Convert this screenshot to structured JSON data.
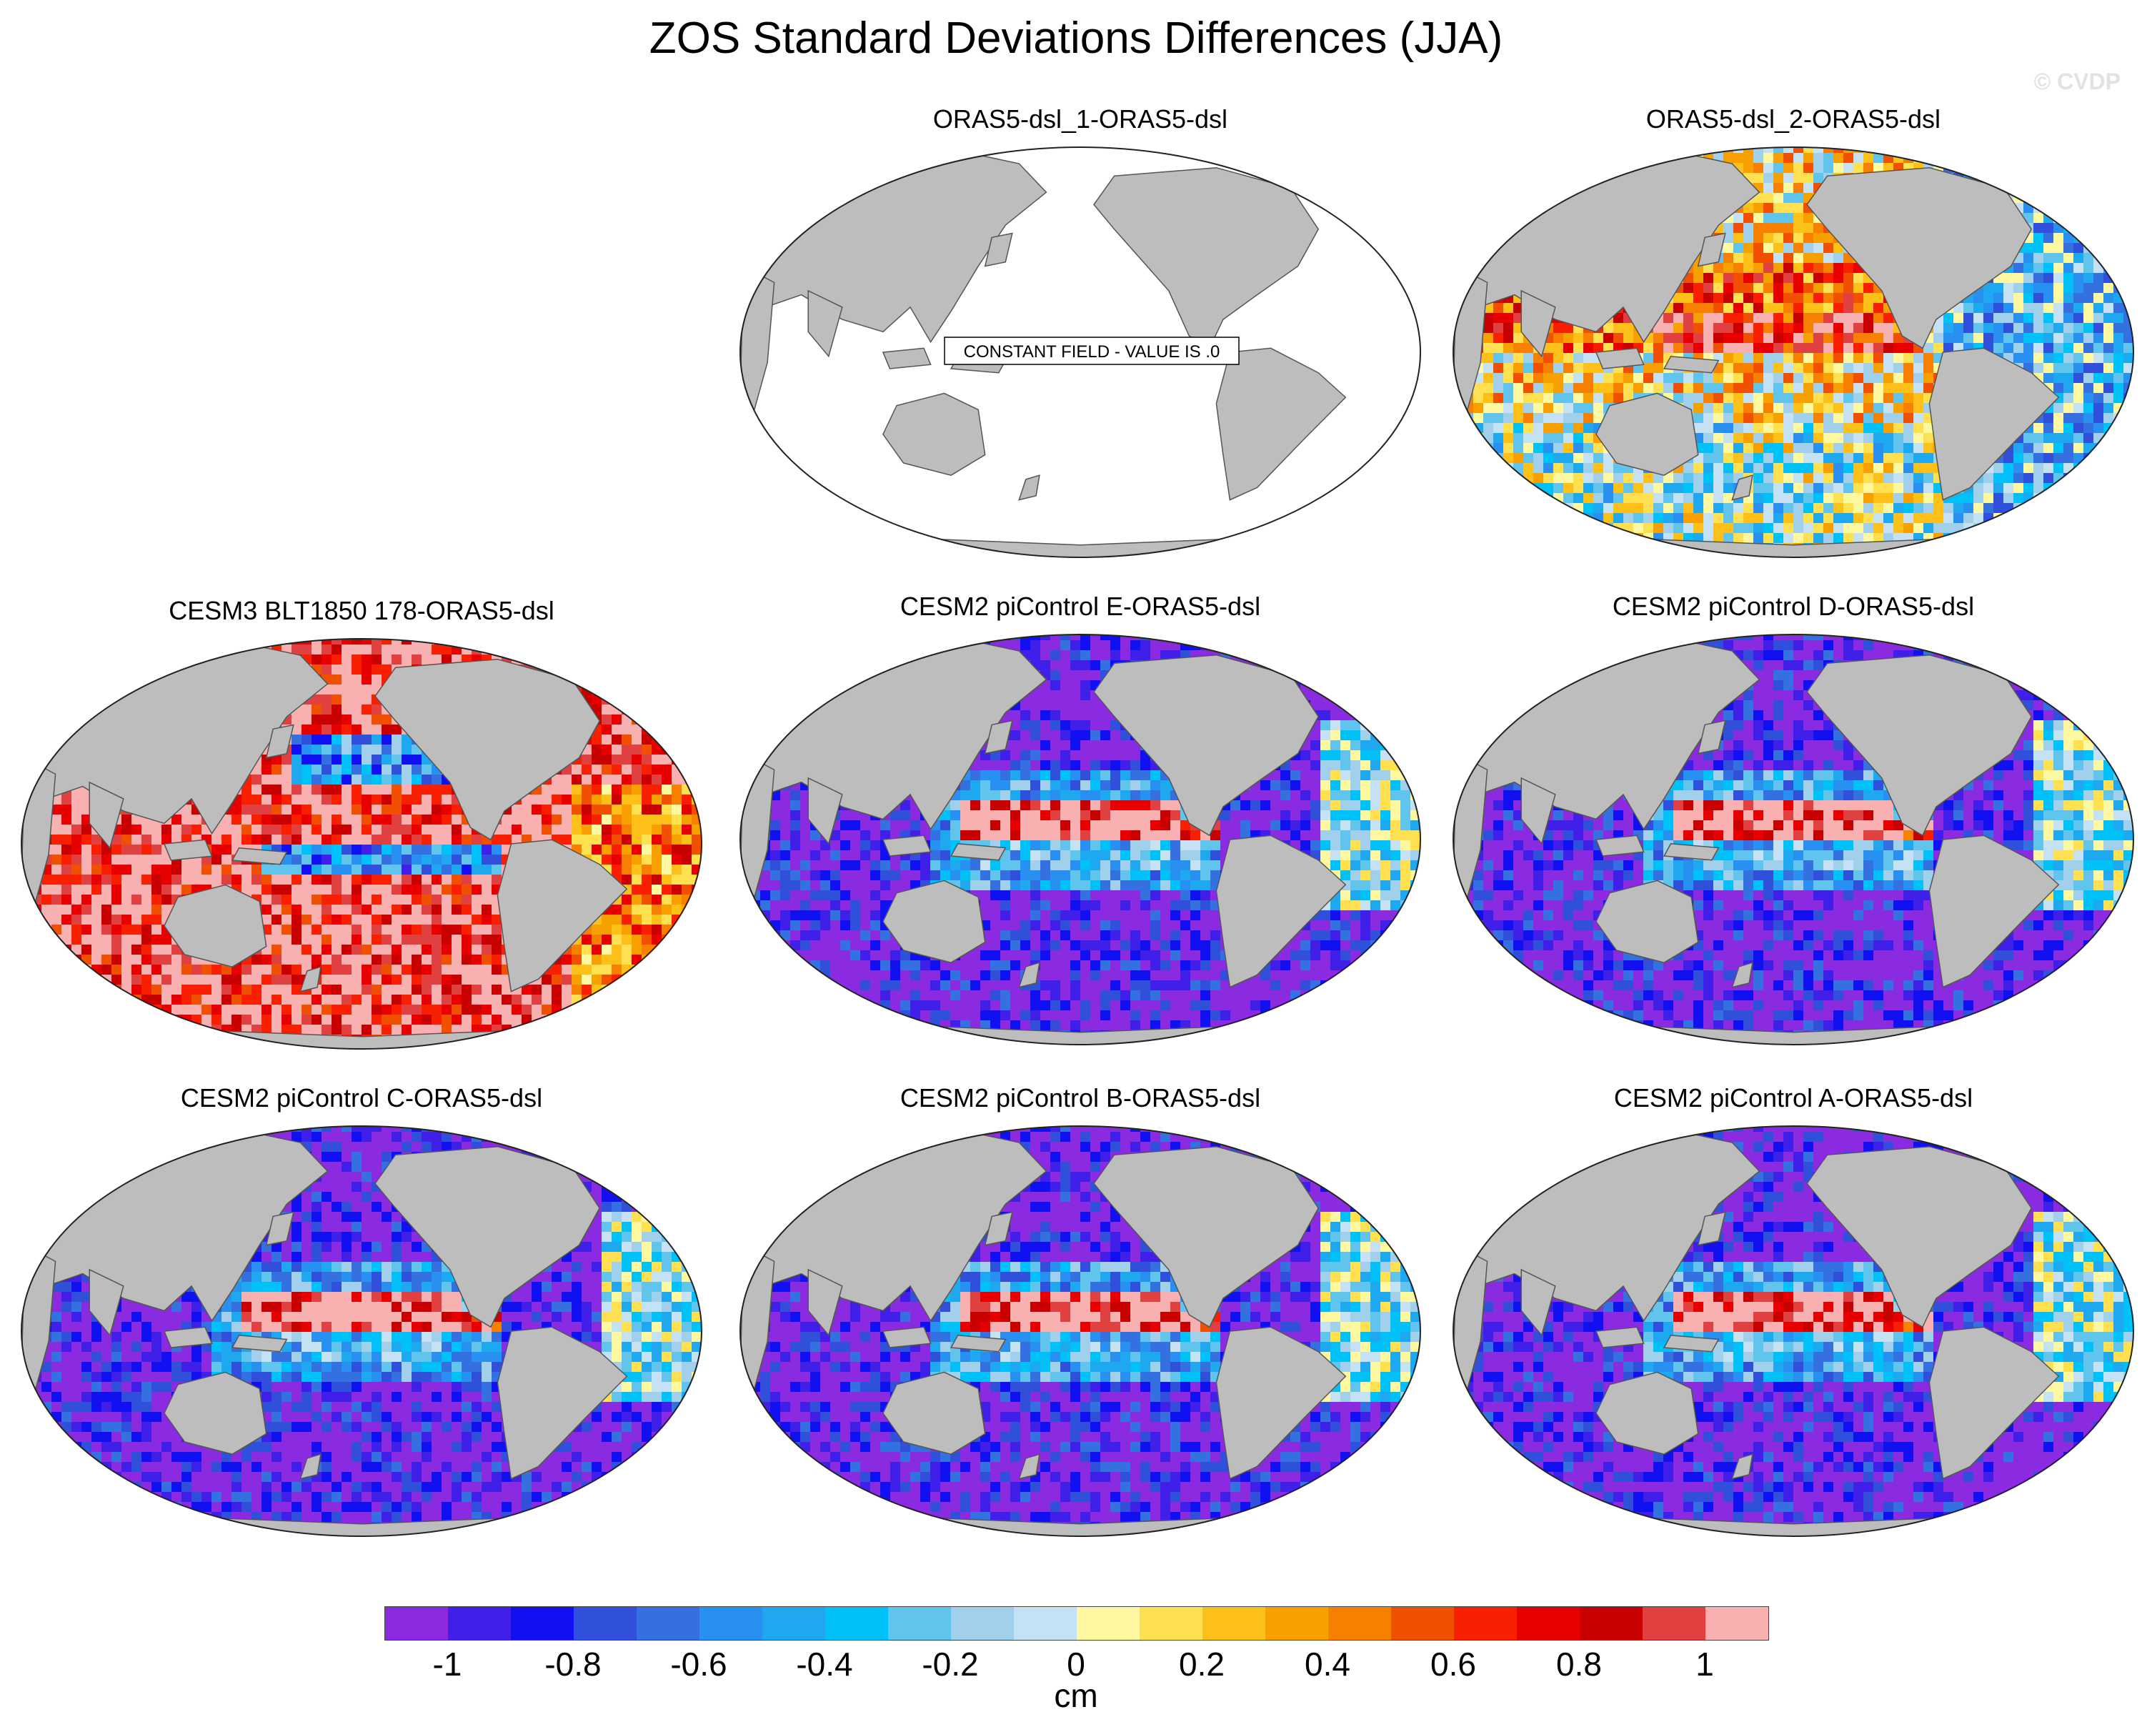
{
  "title": "ZOS Standard Deviations Differences (JJA)",
  "watermark": "© CVDP",
  "map_data": {
    "projection": "Robinson-like, Pacific-centered",
    "variable": "ZOS standard deviation difference",
    "season": "JJA",
    "panels": [
      {
        "title": "ORAS5-dsl_1-ORAS5-dsl",
        "pattern": "constant",
        "annotation": "CONSTANT FIELD - VALUE IS .0"
      },
      {
        "title": "ORAS5-dsl_2-ORAS5-dsl",
        "pattern": "mixed"
      },
      {
        "title": "CESM3 BLT1850 178-ORAS5-dsl",
        "pattern": "positive"
      },
      {
        "title": "CESM2 piControl E-ORAS5-dsl",
        "pattern": "negative"
      },
      {
        "title": "CESM2 piControl D-ORAS5-dsl",
        "pattern": "negative"
      },
      {
        "title": "CESM2 piControl C-ORAS5-dsl",
        "pattern": "negative"
      },
      {
        "title": "CESM2 piControl B-ORAS5-dsl",
        "pattern": "negative"
      },
      {
        "title": "CESM2 piControl A-ORAS5-dsl",
        "pattern": "negative"
      }
    ]
  },
  "colorbar": {
    "units": "cm",
    "colors": [
      "#8a2be2",
      "#4020e8",
      "#1010f0",
      "#3050dc",
      "#3470e0",
      "#2890f0",
      "#1ea8f0",
      "#00c0f8",
      "#60c4ec",
      "#a0d0ec",
      "#c4e2f4",
      "#fef8a0",
      "#fee050",
      "#fcc018",
      "#f8a000",
      "#f88000",
      "#f05000",
      "#f82000",
      "#e80000",
      "#c80000",
      "#e04040",
      "#f8b0b0"
    ],
    "tick_labels": [
      "-1",
      "-0.8",
      "-0.6",
      "-0.4",
      "-0.2",
      "0",
      "0.2",
      "0.4",
      "0.6",
      "0.8",
      "1"
    ],
    "tick_values": [
      -1,
      -0.8,
      -0.6,
      -0.4,
      -0.2,
      0,
      0.2,
      0.4,
      0.6,
      0.8,
      1
    ]
  }
}
